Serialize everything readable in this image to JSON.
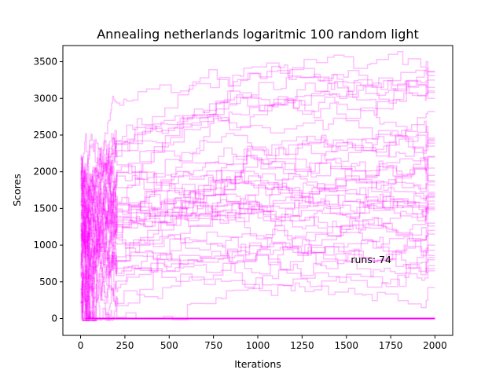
{
  "chart_data": {
    "type": "line",
    "title": "Annealing netherlands logaritmic 100 random light",
    "xlabel": "Iterations",
    "ylabel": "Scores",
    "xlim": [
      -100,
      2100
    ],
    "ylim": [
      -230,
      3720
    ],
    "xticks": [
      "0",
      "250",
      "500",
      "750",
      "1000",
      "1250",
      "1500",
      "1750",
      "2000"
    ],
    "yticks": [
      "0",
      "500",
      "1000",
      "1500",
      "2000",
      "2500",
      "3000",
      "3500"
    ],
    "annotation": {
      "text": "runs: 74",
      "x": 1525,
      "y": 800
    },
    "line_color": "#ff00ff",
    "line_alpha": 0.25,
    "grid": false,
    "legend": "none",
    "series_count": 74,
    "final_scores": [
      3370,
      3360,
      3310,
      3250,
      3150,
      3100,
      3080,
      3000,
      2820,
      2460,
      2440,
      2420,
      2390,
      2350,
      2210,
      2200,
      2050,
      1950,
      1880,
      1860,
      1820,
      1720,
      1700,
      1680,
      1660,
      1650,
      1600,
      1560,
      1520,
      1500,
      1480,
      1300,
      1260,
      1200,
      1150,
      1000,
      930,
      860,
      830,
      800,
      720,
      680,
      650,
      420,
      0,
      0,
      0,
      0,
      0,
      0,
      0,
      0,
      0,
      0,
      0,
      0,
      0,
      0,
      0,
      0,
      0,
      0,
      0,
      0,
      0,
      0,
      0,
      0,
      0,
      0,
      0,
      0,
      0,
      0
    ]
  }
}
